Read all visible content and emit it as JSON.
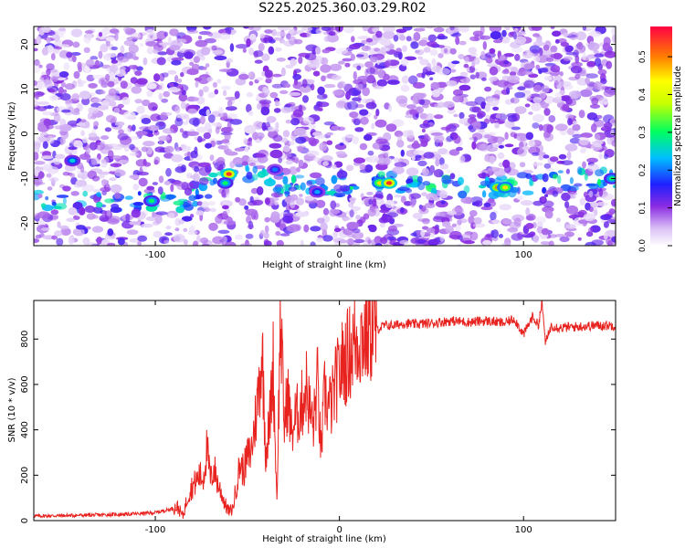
{
  "title": "S225.2025.360.03.29.R02",
  "chart_data": [
    {
      "type": "heatmap",
      "xlabel": "Height of straight line (km)",
      "ylabel": "Frequency (Hz)",
      "xlim": [
        -166,
        150
      ],
      "ylim": [
        -25,
        24
      ],
      "xticks": [
        -100,
        0,
        100
      ],
      "yticks": [
        -20,
        -10,
        0,
        10,
        20
      ],
      "colorbar": {
        "label": "Normalized spectral amplitude",
        "range": [
          0,
          0.58
        ],
        "ticks": [
          0.0,
          0.1,
          0.2,
          0.3,
          0.4,
          0.5
        ]
      },
      "signal_band": {
        "description_free": true,
        "points": [
          {
            "x": -100,
            "y": -15
          },
          {
            "x": -85,
            "y": -16
          },
          {
            "x": -65,
            "y": -10
          },
          {
            "x": -55,
            "y": -9
          },
          {
            "x": -35,
            "y": -11
          },
          {
            "x": -10,
            "y": -12
          },
          {
            "x": 20,
            "y": -11
          },
          {
            "x": 55,
            "y": -11
          },
          {
            "x": 85,
            "y": -12
          },
          {
            "x": 120,
            "y": -10
          },
          {
            "x": 150,
            "y": -10
          }
        ],
        "hotspots": [
          {
            "x": -102,
            "y": -15,
            "v": 0.3
          },
          {
            "x": -60,
            "y": -9,
            "v": 0.55
          },
          {
            "x": -62,
            "y": -11,
            "v": 0.3
          },
          {
            "x": 22,
            "y": -11,
            "v": 0.45
          },
          {
            "x": 27,
            "y": -11,
            "v": 0.55
          },
          {
            "x": 86,
            "y": -12,
            "v": 0.5
          },
          {
            "x": 90,
            "y": -12,
            "v": 0.45
          },
          {
            "x": 148,
            "y": -10,
            "v": 0.3
          },
          {
            "x": -145,
            "y": -6,
            "v": 0.25
          },
          {
            "x": -35,
            "y": -8,
            "v": 0.2
          },
          {
            "x": -12,
            "y": -13,
            "v": 0.22
          }
        ]
      }
    },
    {
      "type": "line",
      "xlabel": "Height of straight line (km)",
      "ylabel": "SNR (10 * v/v)",
      "xlim": [
        -166,
        150
      ],
      "ylim": [
        0,
        970
      ],
      "xticks": [
        -100,
        0,
        100
      ],
      "yticks": [
        0,
        200,
        400,
        600,
        800
      ],
      "color": "#e8231f",
      "series": [
        {
          "x": [
            -166,
            -150,
            -130,
            -110,
            -100,
            -92,
            -88,
            -85,
            -82,
            -80,
            -78,
            -76,
            -74,
            -72,
            -70,
            -68,
            -66,
            -64,
            -62,
            -60,
            -58,
            -56,
            -54,
            -52,
            -50,
            -48,
            -46,
            -44,
            -42,
            -40,
            -38,
            -36,
            -34,
            -32,
            -30,
            -28,
            -26,
            -24,
            -22,
            -20,
            -18,
            -16,
            -14,
            -12,
            -10,
            -8,
            -6,
            -4,
            -2,
            0,
            2,
            4,
            6,
            8,
            10,
            12,
            14,
            16,
            18,
            20,
            22,
            25,
            30,
            35,
            40,
            50,
            60,
            70,
            80,
            90,
            95,
            100,
            105,
            108,
            110,
            112,
            115,
            120,
            130,
            140,
            150
          ],
          "y": [
            20,
            22,
            25,
            30,
            35,
            50,
            60,
            20,
            120,
            150,
            170,
            200,
            180,
            320,
            180,
            230,
            160,
            120,
            70,
            40,
            50,
            150,
            250,
            220,
            280,
            300,
            420,
            560,
            760,
            300,
            420,
            700,
            80,
            900,
            420,
            560,
            380,
            450,
            480,
            520,
            600,
            480,
            420,
            620,
            300,
            560,
            500,
            520,
            600,
            650,
            700,
            720,
            750,
            780,
            800,
            810,
            820,
            830,
            850,
            840,
            850,
            860,
            860,
            870,
            865,
            870,
            880,
            875,
            880,
            870,
            890,
            820,
            900,
            860,
            960,
            780,
            860,
            850,
            855,
            860,
            860
          ]
        }
      ]
    }
  ]
}
